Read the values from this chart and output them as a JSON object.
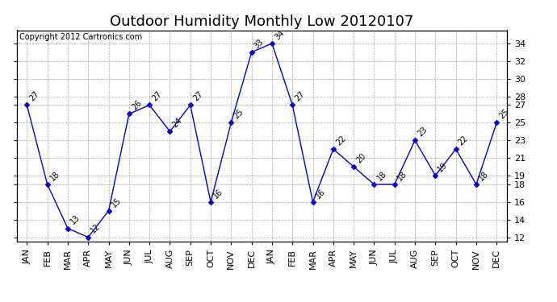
{
  "title": "Outdoor Humidity Monthly Low 20120107",
  "copyright": "Copyright 2012 Cartronics.com",
  "months": [
    "JAN",
    "FEB",
    "MAR",
    "APR",
    "MAY",
    "JUN",
    "JUL",
    "AUG",
    "SEP",
    "OCT",
    "NOV",
    "DEC",
    "JAN",
    "FEB",
    "MAR",
    "APR",
    "MAY",
    "JUN",
    "JUL",
    "AUG",
    "SEP",
    "OCT",
    "NOV",
    "DEC"
  ],
  "values": [
    27,
    18,
    13,
    12,
    15,
    26,
    27,
    24,
    27,
    16,
    25,
    33,
    34,
    27,
    16,
    22,
    20,
    18,
    18,
    23,
    19,
    22,
    18,
    25
  ],
  "line_color": "#0000cc",
  "ylim": [
    11.5,
    35.5
  ],
  "yticks_right": [
    34,
    32,
    30,
    28,
    27,
    25,
    23,
    21,
    19,
    18,
    16,
    14,
    12
  ],
  "background_color": "#ffffff",
  "grid_color": "#aaaaaa",
  "title_fontsize": 13,
  "tick_fontsize": 8,
  "annotation_fontsize": 7,
  "copyright_fontsize": 7
}
